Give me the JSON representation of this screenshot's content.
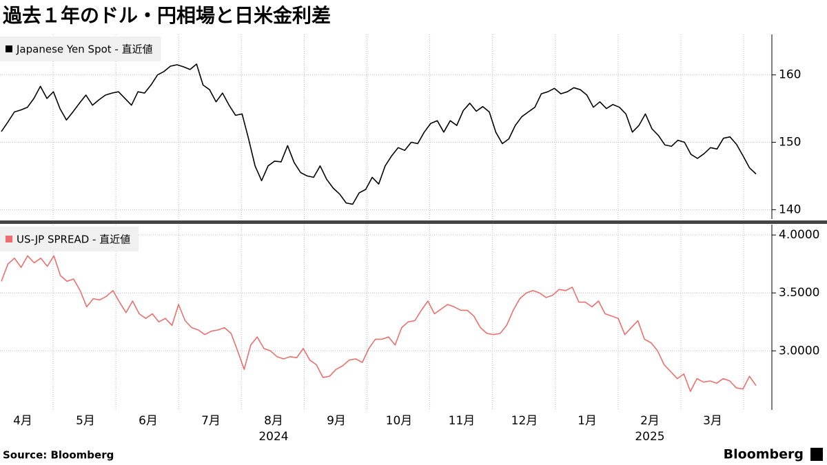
{
  "title": "過去１年のドル・円相場と日米金利差",
  "source": "Source:  Bloomberg",
  "brand": "Bloomberg",
  "chart_data": [
    {
      "type": "line",
      "series": [
        {
          "name": "Japanese Yen Spot - 直近値",
          "color": "#000000",
          "values": [
            151.6,
            153,
            154.5,
            154.8,
            155.2,
            156.5,
            158.3,
            156.5,
            157.5,
            155,
            153.3,
            154.5,
            155.8,
            157,
            155.5,
            156.3,
            157,
            157.3,
            157.5,
            156.5,
            155.5,
            157.5,
            157.3,
            158.5,
            160,
            160.5,
            161.3,
            161.5,
            161.2,
            160.8,
            161.6,
            158.5,
            157.8,
            156,
            157.3,
            155.5,
            154,
            154.2,
            150.5,
            146.5,
            144.3,
            146.5,
            147.2,
            147.1,
            149.5,
            147,
            145.5,
            145,
            144.8,
            146.5,
            144.5,
            143.2,
            142.3,
            141,
            140.8,
            142.5,
            143,
            144.8,
            143.8,
            146.5,
            148,
            149.2,
            148.8,
            150,
            149.8,
            151.5,
            152.8,
            153.2,
            151.5,
            153.2,
            152.5,
            154.7,
            155.8,
            154.6,
            155.3,
            154.5,
            151.5,
            149.8,
            150.5,
            152.5,
            153.8,
            154.5,
            155.2,
            157.2,
            157.5,
            158,
            157.2,
            157.5,
            158.1,
            157.8,
            157,
            155.2,
            156,
            155,
            155.6,
            155.2,
            154.2,
            151.5,
            152.5,
            154.2,
            152,
            151,
            149.6,
            149.4,
            150.3,
            150,
            148.2,
            147.6,
            148.3,
            149.2,
            149,
            150.6,
            150.8,
            149.7,
            148,
            146.2,
            145.3
          ]
        }
      ],
      "ylim": [
        138.4,
        166
      ],
      "yticks": [
        140,
        150,
        160
      ],
      "grid": true
    },
    {
      "type": "line",
      "series": [
        {
          "name": "US-JP SPREAD - 直近値",
          "color": "#ec6f6c",
          "values": [
            3.6,
            3.75,
            3.8,
            3.72,
            3.82,
            3.76,
            3.8,
            3.73,
            3.82,
            3.65,
            3.6,
            3.62,
            3.52,
            3.38,
            3.45,
            3.44,
            3.47,
            3.52,
            3.42,
            3.33,
            3.43,
            3.32,
            3.28,
            3.32,
            3.25,
            3.28,
            3.22,
            3.4,
            3.26,
            3.2,
            3.18,
            3.14,
            3.17,
            3.18,
            3.2,
            3.15,
            3.0,
            2.84,
            3.05,
            3.12,
            3.02,
            3.0,
            2.95,
            2.93,
            2.95,
            2.94,
            3.02,
            2.92,
            2.88,
            2.77,
            2.78,
            2.84,
            2.87,
            2.92,
            2.93,
            2.9,
            3.02,
            3.1,
            3.1,
            3.12,
            3.05,
            3.2,
            3.25,
            3.26,
            3.35,
            3.43,
            3.32,
            3.36,
            3.4,
            3.38,
            3.35,
            3.35,
            3.3,
            3.2,
            3.15,
            3.14,
            3.15,
            3.22,
            3.35,
            3.45,
            3.5,
            3.52,
            3.5,
            3.46,
            3.48,
            3.53,
            3.52,
            3.55,
            3.42,
            3.42,
            3.38,
            3.43,
            3.32,
            3.3,
            3.28,
            3.14,
            3.2,
            3.26,
            3.1,
            3.07,
            3.0,
            2.88,
            2.82,
            2.76,
            2.8,
            2.65,
            2.76,
            2.73,
            2.74,
            2.72,
            2.76,
            2.74,
            2.68,
            2.67,
            2.78,
            2.7
          ]
        }
      ],
      "ylim": [
        2.49,
        4.09
      ],
      "yticks": [
        {
          "value": 3,
          "label": "3.0000"
        },
        {
          "value": 3.5,
          "label": "3.5000"
        },
        {
          "value": 4,
          "label": "4.0000"
        }
      ],
      "grid": true,
      "x_labels": [
        "4月",
        "5月",
        "6月",
        "7月",
        "8月",
        "9月",
        "10月",
        "11月",
        "12月",
        "1月",
        "2月",
        "3月"
      ],
      "year_labels": [
        "2024",
        "2025"
      ]
    }
  ]
}
